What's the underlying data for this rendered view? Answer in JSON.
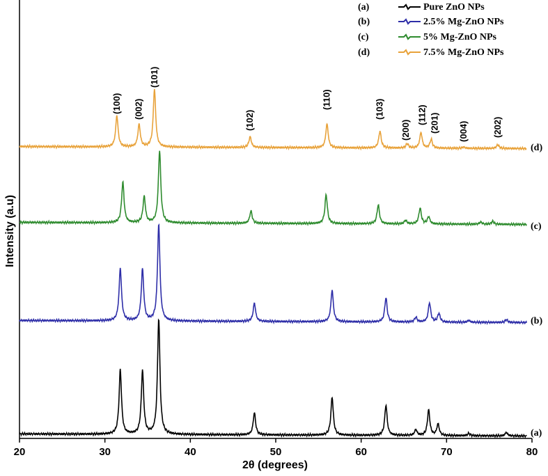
{
  "chart_data": {
    "type": "line",
    "xlabel": "2θ (degrees)",
    "ylabel": "Intensity (a.u)",
    "xlim": [
      20,
      80
    ],
    "xticks": [
      20,
      30,
      40,
      50,
      60,
      70,
      80
    ],
    "grid": false,
    "legend_position": "top-right",
    "series": [
      {
        "letter": "(a)",
        "name": "Pure ZnO NPs",
        "color": "#000000",
        "peaks": [
          {
            "x": 31.8,
            "h": 0.56
          },
          {
            "x": 34.4,
            "h": 0.55
          },
          {
            "x": 36.3,
            "h": 1.0
          },
          {
            "x": 47.5,
            "h": 0.19
          },
          {
            "x": 56.6,
            "h": 0.33
          },
          {
            "x": 62.9,
            "h": 0.26
          },
          {
            "x": 66.4,
            "h": 0.05
          },
          {
            "x": 67.9,
            "h": 0.22
          },
          {
            "x": 69.0,
            "h": 0.1
          },
          {
            "x": 72.6,
            "h": 0.02
          },
          {
            "x": 77.0,
            "h": 0.03
          }
        ]
      },
      {
        "letter": "(b)",
        "name": "2.5% Mg-ZnO NPs",
        "color": "#2e2ea8",
        "peaks": [
          {
            "x": 31.8,
            "h": 0.55
          },
          {
            "x": 34.4,
            "h": 0.54
          },
          {
            "x": 36.3,
            "h": 1.0
          },
          {
            "x": 47.5,
            "h": 0.19
          },
          {
            "x": 56.6,
            "h": 0.33
          },
          {
            "x": 62.9,
            "h": 0.25
          },
          {
            "x": 66.4,
            "h": 0.05
          },
          {
            "x": 68.0,
            "h": 0.2
          },
          {
            "x": 69.1,
            "h": 0.09
          },
          {
            "x": 72.6,
            "h": 0.02
          },
          {
            "x": 77.0,
            "h": 0.03
          }
        ]
      },
      {
        "letter": "(c)",
        "name": "5% Mg-ZnO NPs",
        "color": "#2e8b2e",
        "peaks": [
          {
            "x": 32.1,
            "h": 0.56
          },
          {
            "x": 34.6,
            "h": 0.36
          },
          {
            "x": 36.4,
            "h": 1.0
          },
          {
            "x": 47.1,
            "h": 0.17
          },
          {
            "x": 55.9,
            "h": 0.4
          },
          {
            "x": 62.0,
            "h": 0.26
          },
          {
            "x": 65.2,
            "h": 0.05
          },
          {
            "x": 66.9,
            "h": 0.22
          },
          {
            "x": 67.9,
            "h": 0.1
          },
          {
            "x": 74.0,
            "h": 0.03
          },
          {
            "x": 75.4,
            "h": 0.04
          }
        ]
      },
      {
        "letter": "(d)",
        "name": "7.5% Mg-ZnO NPs",
        "color": "#e8a23a",
        "peaks": [
          {
            "x": 31.4,
            "h": 0.5
          },
          {
            "x": 34.0,
            "h": 0.36
          },
          {
            "x": 35.8,
            "h": 0.92
          },
          {
            "x": 47.0,
            "h": 0.17
          },
          {
            "x": 56.0,
            "h": 0.38
          },
          {
            "x": 62.2,
            "h": 0.27
          },
          {
            "x": 65.4,
            "h": 0.07
          },
          {
            "x": 67.0,
            "h": 0.25
          },
          {
            "x": 68.2,
            "h": 0.14
          },
          {
            "x": 72.0,
            "h": 0.02
          },
          {
            "x": 76.0,
            "h": 0.06
          }
        ]
      }
    ],
    "annotations": [
      {
        "text": "(100)",
        "x": 31.4
      },
      {
        "text": "(002)",
        "x": 34.0
      },
      {
        "text": "(101)",
        "x": 35.8
      },
      {
        "text": "(102)",
        "x": 47.0
      },
      {
        "text": "(110)",
        "x": 56.0
      },
      {
        "text": "(103)",
        "x": 62.2
      },
      {
        "text": "(200)",
        "x": 65.4
      },
      {
        "text": "(112)",
        "x": 67.0
      },
      {
        "text": "(201)",
        "x": 68.2
      },
      {
        "text": "(004)",
        "x": 72.0
      },
      {
        "text": "(202)",
        "x": 76.0
      }
    ]
  }
}
